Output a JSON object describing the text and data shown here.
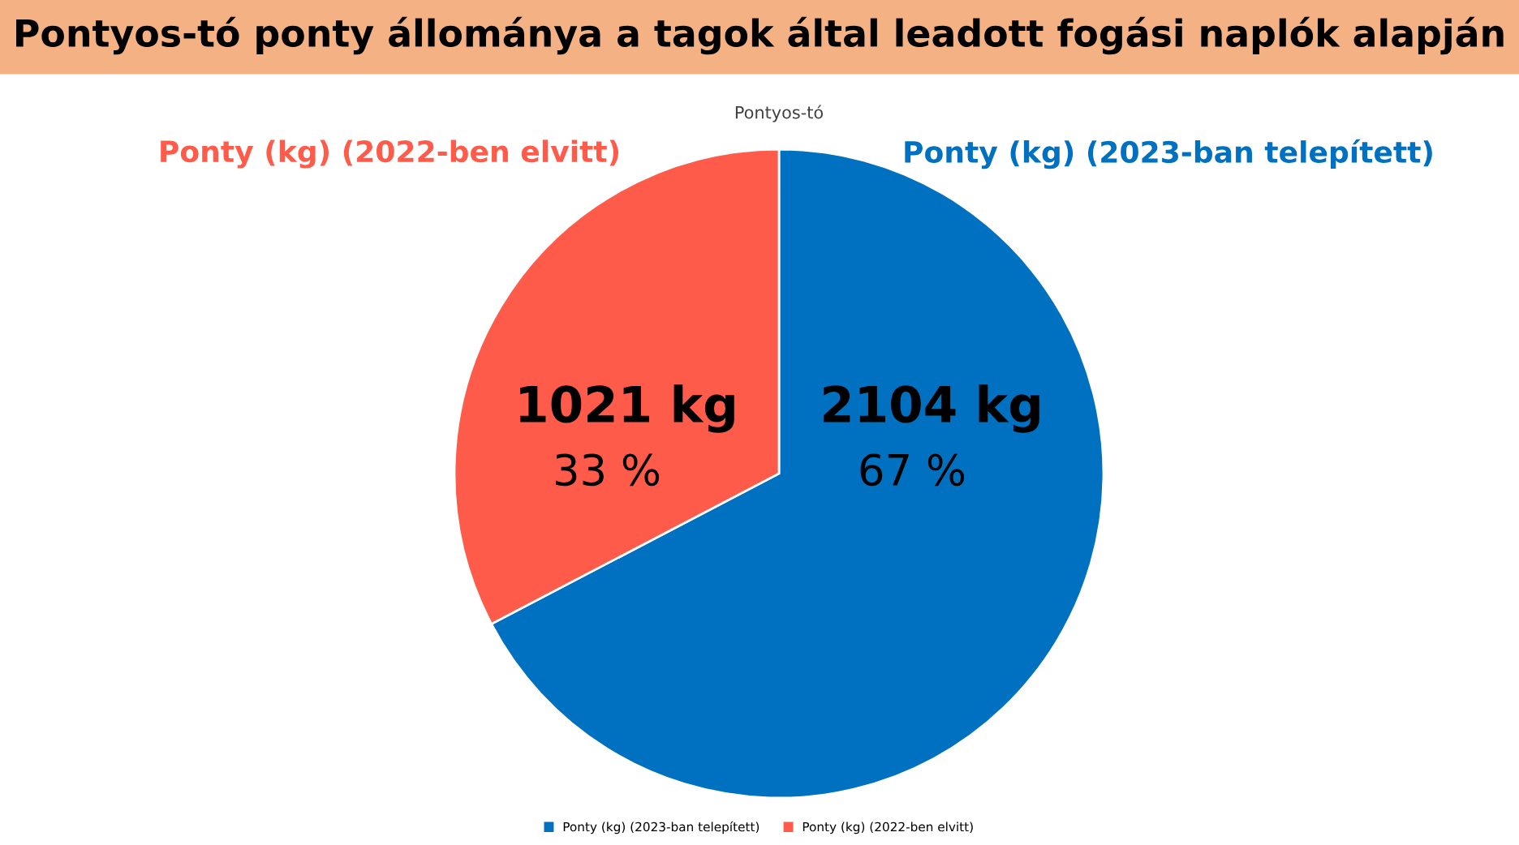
{
  "chart_data": {
    "type": "pie",
    "title": "Pontyos-tó ponty állománya a tagok által leadott fogási naplók alapján",
    "subtitle": "Pontyos-tó",
    "categories": [
      "Ponty (kg) (2023-ban telepített)",
      "Ponty (kg) (2022-ben elvitt)"
    ],
    "values": [
      2104,
      1021
    ],
    "colors": [
      "#0070c0",
      "#ff5b4b"
    ],
    "value_labels": [
      "2104 kg\n67 %",
      "1021 kg\n33 %"
    ],
    "legend": "bottom"
  }
}
